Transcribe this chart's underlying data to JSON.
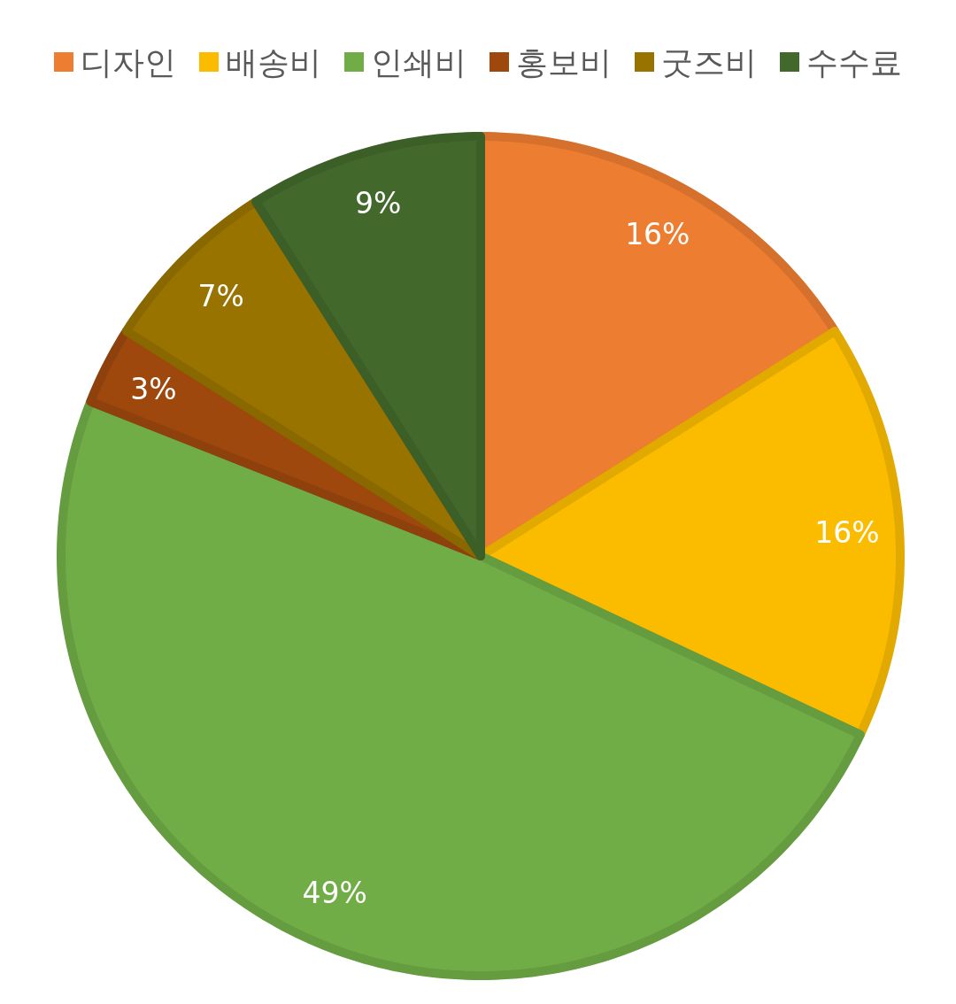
{
  "chart_data": {
    "type": "pie",
    "categories": [
      "디자인",
      "배송비",
      "인쇄비",
      "홍보비",
      "굿즈비",
      "수수료"
    ],
    "values": [
      16,
      16,
      49,
      3,
      7,
      9
    ],
    "colors": [
      "#ed7d31",
      "#fbbc00",
      "#70ad47",
      "#9e480e",
      "#997300",
      "#43682b"
    ],
    "value_labels": [
      "16%",
      "16%",
      "49%",
      "3%",
      "7%",
      "9%"
    ],
    "legend": "top"
  }
}
